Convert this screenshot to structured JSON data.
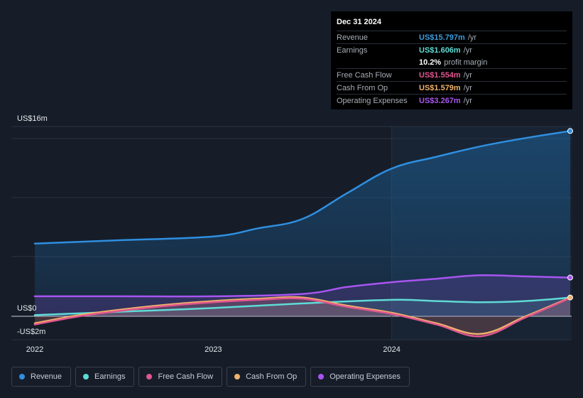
{
  "tooltip": {
    "date": "Dec 31 2024",
    "rows": [
      {
        "label": "Revenue",
        "value": "US$15.797m",
        "unit": "/yr",
        "color": "#3b9de0"
      },
      {
        "label": "Earnings",
        "value": "US$1.606m",
        "unit": "/yr",
        "color": "#5fdbd6"
      },
      {
        "label": "",
        "value": "10.2%",
        "unit": "profit margin",
        "color": "#ffffff"
      },
      {
        "label": "Free Cash Flow",
        "value": "US$1.554m",
        "unit": "/yr",
        "color": "#e0568f"
      },
      {
        "label": "Cash From Op",
        "value": "US$1.579m",
        "unit": "/yr",
        "color": "#f0b26b"
      },
      {
        "label": "Operating Expenses",
        "value": "US$3.267m",
        "unit": "/yr",
        "color": "#a855f0"
      }
    ]
  },
  "legend": [
    {
      "label": "Revenue",
      "color": "#2f8fe0"
    },
    {
      "label": "Earnings",
      "color": "#5fdbd6"
    },
    {
      "label": "Free Cash Flow",
      "color": "#e0568f"
    },
    {
      "label": "Cash From Op",
      "color": "#f0b26b"
    },
    {
      "label": "Operating Expenses",
      "color": "#a855f0"
    }
  ],
  "chart_data": {
    "type": "line",
    "title": "",
    "xlabel": "",
    "ylabel": "",
    "ylim": [
      -2,
      16
    ],
    "xlim": [
      2022,
      2025
    ],
    "y_tick_labels": [
      {
        "value": 16,
        "label": "US$16m"
      },
      {
        "value": 0,
        "label": "US$0"
      },
      {
        "value": -2,
        "label": "-US$2m"
      }
    ],
    "x_tick_labels": [
      {
        "value": 2022,
        "label": "2022"
      },
      {
        "value": 2023,
        "label": "2023"
      },
      {
        "value": 2024,
        "label": "2024"
      }
    ],
    "highlight_start": 2024,
    "series": [
      {
        "name": "Revenue",
        "color": "#2f8fe0",
        "points": [
          [
            2022,
            6.2
          ],
          [
            2022.5,
            6.5
          ],
          [
            2023,
            6.8
          ],
          [
            2023.25,
            7.5
          ],
          [
            2023.5,
            8.3
          ],
          [
            2023.75,
            10.5
          ],
          [
            2024,
            12.6
          ],
          [
            2024.25,
            13.6
          ],
          [
            2024.5,
            14.5
          ],
          [
            2024.75,
            15.2
          ],
          [
            2025,
            15.8
          ]
        ]
      },
      {
        "name": "Operating Expenses",
        "color": "#a855f0",
        "points": [
          [
            2022,
            1.7
          ],
          [
            2022.5,
            1.7
          ],
          [
            2023,
            1.7
          ],
          [
            2023.5,
            1.9
          ],
          [
            2023.75,
            2.5
          ],
          [
            2024,
            2.9
          ],
          [
            2024.25,
            3.2
          ],
          [
            2024.5,
            3.5
          ],
          [
            2024.75,
            3.4
          ],
          [
            2025,
            3.3
          ]
        ]
      },
      {
        "name": "Earnings",
        "color": "#5fdbd6",
        "points": [
          [
            2022,
            0.1
          ],
          [
            2022.5,
            0.4
          ],
          [
            2023,
            0.7
          ],
          [
            2023.5,
            1.1
          ],
          [
            2024,
            1.4
          ],
          [
            2024.25,
            1.3
          ],
          [
            2024.5,
            1.2
          ],
          [
            2024.75,
            1.3
          ],
          [
            2025,
            1.6
          ]
        ]
      },
      {
        "name": "Cash From Op",
        "color": "#f0b26b",
        "points": [
          [
            2022,
            -0.6
          ],
          [
            2022.25,
            0.1
          ],
          [
            2022.5,
            0.6
          ],
          [
            2022.75,
            1.0
          ],
          [
            2023,
            1.3
          ],
          [
            2023.25,
            1.5
          ],
          [
            2023.5,
            1.6
          ],
          [
            2023.75,
            0.9
          ],
          [
            2024,
            0.3
          ],
          [
            2024.25,
            -0.6
          ],
          [
            2024.5,
            -1.5
          ],
          [
            2024.75,
            0.0
          ],
          [
            2025,
            1.6
          ]
        ]
      },
      {
        "name": "Free Cash Flow",
        "color": "#e0568f",
        "points": [
          [
            2022,
            -0.7
          ],
          [
            2022.25,
            0.0
          ],
          [
            2022.5,
            0.5
          ],
          [
            2022.75,
            0.9
          ],
          [
            2023,
            1.2
          ],
          [
            2023.25,
            1.4
          ],
          [
            2023.5,
            1.5
          ],
          [
            2023.75,
            0.8
          ],
          [
            2024,
            0.2
          ],
          [
            2024.25,
            -0.7
          ],
          [
            2024.5,
            -1.7
          ],
          [
            2024.75,
            -0.1
          ],
          [
            2025,
            1.55
          ]
        ]
      }
    ]
  }
}
